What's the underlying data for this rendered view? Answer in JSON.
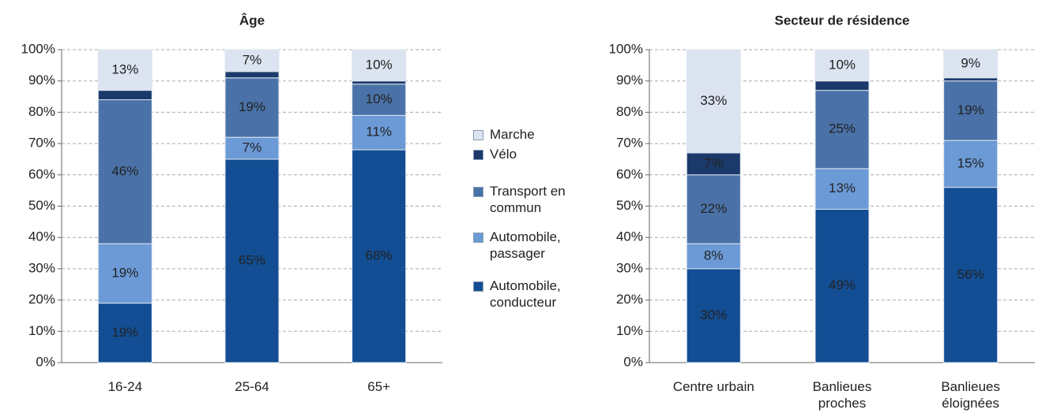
{
  "chart_data": [
    {
      "type": "bar",
      "stacked": true,
      "title": "Âge",
      "categories": [
        "16-24",
        "25-64",
        "65+"
      ],
      "series": [
        {
          "name": "Automobile, conducteur",
          "color": "#134e94",
          "values": [
            19,
            65,
            68
          ],
          "value_labels": [
            "19%",
            "65%",
            "68%"
          ]
        },
        {
          "name": "Automobile, passager",
          "color": "#6b9ad6",
          "values": [
            19,
            7,
            11
          ],
          "value_labels": [
            "19%",
            "7%",
            "11%"
          ]
        },
        {
          "name": "Transport en commun",
          "color": "#4a72a8",
          "values": [
            46,
            19,
            10
          ],
          "value_labels": [
            "46%",
            "19%",
            "10%"
          ]
        },
        {
          "name": "Vélo",
          "color": "#1b3a6b",
          "values": [
            3,
            2,
            1
          ],
          "value_labels": [
            null,
            null,
            null
          ]
        },
        {
          "name": "Marche",
          "color": "#dce3f1",
          "values": [
            13,
            7,
            10
          ],
          "value_labels": [
            "13%",
            "7%",
            "10%"
          ]
        }
      ],
      "ylim": [
        0,
        100
      ],
      "yticks": [
        {
          "value": 0,
          "label": "0%"
        },
        {
          "value": 10,
          "label": "10%"
        },
        {
          "value": 20,
          "label": "20%"
        },
        {
          "value": 30,
          "label": "30%"
        },
        {
          "value": 40,
          "label": "40%"
        },
        {
          "value": 50,
          "label": "50%"
        },
        {
          "value": 60,
          "label": "60%"
        },
        {
          "value": 70,
          "label": "70%"
        },
        {
          "value": 80,
          "label": "80%"
        },
        {
          "value": 90,
          "label": "90%"
        },
        {
          "value": 100,
          "label": "100%"
        }
      ],
      "grid": true
    },
    {
      "type": "bar",
      "stacked": true,
      "title": "Secteur de résidence",
      "categories": [
        "Centre urbain",
        "Banlieues proches",
        "Banlieues éloignées"
      ],
      "series": [
        {
          "color": "#134e94",
          "values": [
            30,
            49,
            56
          ],
          "value_labels": [
            "30%",
            "49%",
            "56%"
          ]
        },
        {
          "color": "#6b9ad6",
          "values": [
            8,
            13,
            15
          ],
          "value_labels": [
            "8%",
            "13%",
            "15%"
          ]
        },
        {
          "color": "#4a72a8",
          "values": [
            22,
            25,
            19
          ],
          "value_labels": [
            "22%",
            "25%",
            "19%"
          ]
        },
        {
          "color": "#1b3a6b",
          "values": [
            7,
            3,
            1
          ],
          "value_labels": [
            "7%",
            null,
            null
          ]
        },
        {
          "color": "#dce3f1",
          "values": [
            33,
            10,
            9
          ],
          "value_labels": [
            "33%",
            "10%",
            "9%"
          ]
        }
      ],
      "ylim": [
        0,
        100
      ],
      "yticks": [
        {
          "value": 0,
          "label": "0%"
        },
        {
          "value": 10,
          "label": "10%"
        },
        {
          "value": 20,
          "label": "20%"
        },
        {
          "value": 30,
          "label": "30%"
        },
        {
          "value": 40,
          "label": "40%"
        },
        {
          "value": 50,
          "label": "50%"
        },
        {
          "value": 60,
          "label": "60%"
        },
        {
          "value": 70,
          "label": "70%"
        },
        {
          "value": 80,
          "label": "80%"
        },
        {
          "value": 90,
          "label": "90%"
        },
        {
          "value": 100,
          "label": "100%"
        }
      ],
      "grid": true
    }
  ]
}
